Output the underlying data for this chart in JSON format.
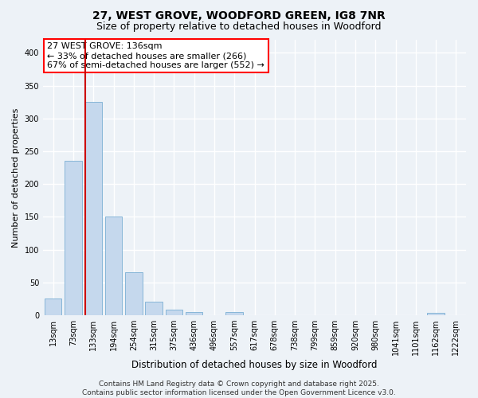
{
  "title": "27, WEST GROVE, WOODFORD GREEN, IG8 7NR",
  "subtitle": "Size of property relative to detached houses in Woodford",
  "xlabel": "Distribution of detached houses by size in Woodford",
  "ylabel": "Number of detached properties",
  "bins": [
    "13sqm",
    "73sqm",
    "133sqm",
    "194sqm",
    "254sqm",
    "315sqm",
    "375sqm",
    "436sqm",
    "496sqm",
    "557sqm",
    "617sqm",
    "678sqm",
    "738sqm",
    "799sqm",
    "859sqm",
    "920sqm",
    "980sqm",
    "1041sqm",
    "1101sqm",
    "1162sqm",
    "1222sqm"
  ],
  "values": [
    25,
    235,
    325,
    150,
    65,
    20,
    8,
    5,
    0,
    5,
    0,
    0,
    0,
    0,
    0,
    0,
    0,
    0,
    0,
    3,
    0
  ],
  "bar_color": "#c5d8ed",
  "bar_edge_color": "#7aafd4",
  "highlight_bar_index": 2,
  "highlight_left_color": "#cc0000",
  "annotation_text": "27 WEST GROVE: 136sqm\n← 33% of detached houses are smaller (266)\n67% of semi-detached houses are larger (552) →",
  "annotation_fontsize": 8,
  "ylim": [
    0,
    420
  ],
  "yticks": [
    0,
    50,
    100,
    150,
    200,
    250,
    300,
    350,
    400
  ],
  "background_color": "#edf2f7",
  "grid_color": "#ffffff",
  "footer_line1": "Contains HM Land Registry data © Crown copyright and database right 2025.",
  "footer_line2": "Contains public sector information licensed under the Open Government Licence v3.0.",
  "title_fontsize": 10,
  "subtitle_fontsize": 9,
  "xlabel_fontsize": 8.5,
  "ylabel_fontsize": 8,
  "tick_fontsize": 7,
  "footer_fontsize": 6.5
}
